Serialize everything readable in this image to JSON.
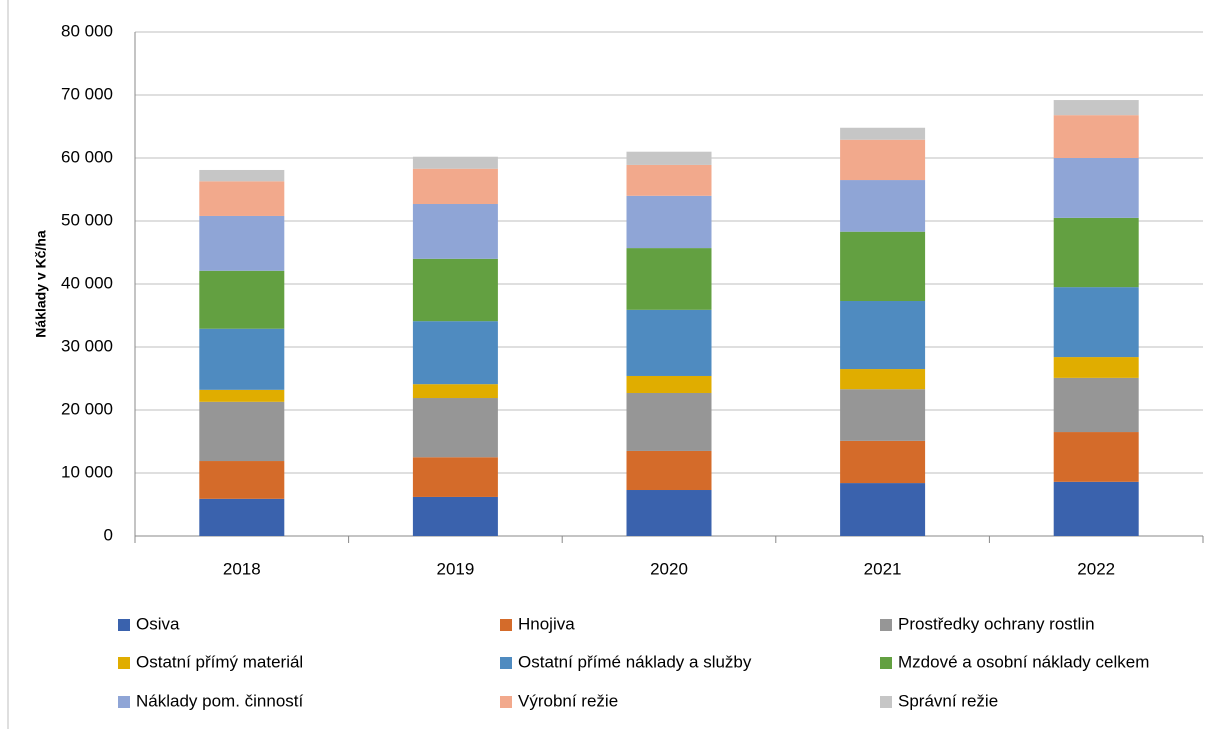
{
  "chart_data": {
    "type": "stacked_bar",
    "y_label": "Náklady v Kč/ha",
    "categories": [
      "2018",
      "2019",
      "2020",
      "2021",
      "2022"
    ],
    "ylim": [
      0,
      80000
    ],
    "yticks": [
      0,
      {
        "value": 10000,
        "label": "10 000"
      },
      {
        "value": 20000,
        "label": "20 000"
      },
      {
        "value": 30000,
        "label": "30 000"
      },
      {
        "value": 40000,
        "label": "40 000"
      },
      {
        "value": 50000,
        "label": "50 000"
      },
      {
        "value": 60000,
        "label": "60 000"
      },
      {
        "value": 70000,
        "label": "70 000"
      },
      {
        "value": 80000,
        "label": "80 000"
      }
    ],
    "grid": true,
    "legend": "bottom",
    "series": [
      {
        "name": "Osiva",
        "color": "#3a62ad",
        "values": [
          5900,
          6200,
          7300,
          8400,
          8600
        ]
      },
      {
        "name": "Hnojiva",
        "color": "#d46b2a",
        "values": [
          6000,
          6300,
          6200,
          6700,
          7900
        ]
      },
      {
        "name": "Prostředky ochrany rostlin",
        "color": "#969696",
        "values": [
          9400,
          9400,
          9200,
          8200,
          8600
        ]
      },
      {
        "name": "Ostatní přímý materiál",
        "color": "#e0ad00",
        "values": [
          1900,
          2200,
          2700,
          3200,
          3300
        ]
      },
      {
        "name": "Ostatní přímé náklady a služby",
        "color": "#4f8bc0",
        "values": [
          9700,
          10000,
          10500,
          10800,
          11100
        ]
      },
      {
        "name": "Mzdové a osobní náklady celkem",
        "color": "#63a041",
        "values": [
          9200,
          9900,
          9800,
          11000,
          11000
        ]
      },
      {
        "name": "Náklady pom. činností",
        "color": "#8fa5d6",
        "values": [
          8700,
          8700,
          8300,
          8200,
          9500
        ]
      },
      {
        "name": "Výrobní režie",
        "color": "#f2a98c",
        "values": [
          5500,
          5600,
          4900,
          6400,
          6800
        ]
      },
      {
        "name": "Správní režie",
        "color": "#c6c6c6",
        "values": [
          1800,
          1900,
          2100,
          1900,
          2400
        ]
      }
    ]
  }
}
